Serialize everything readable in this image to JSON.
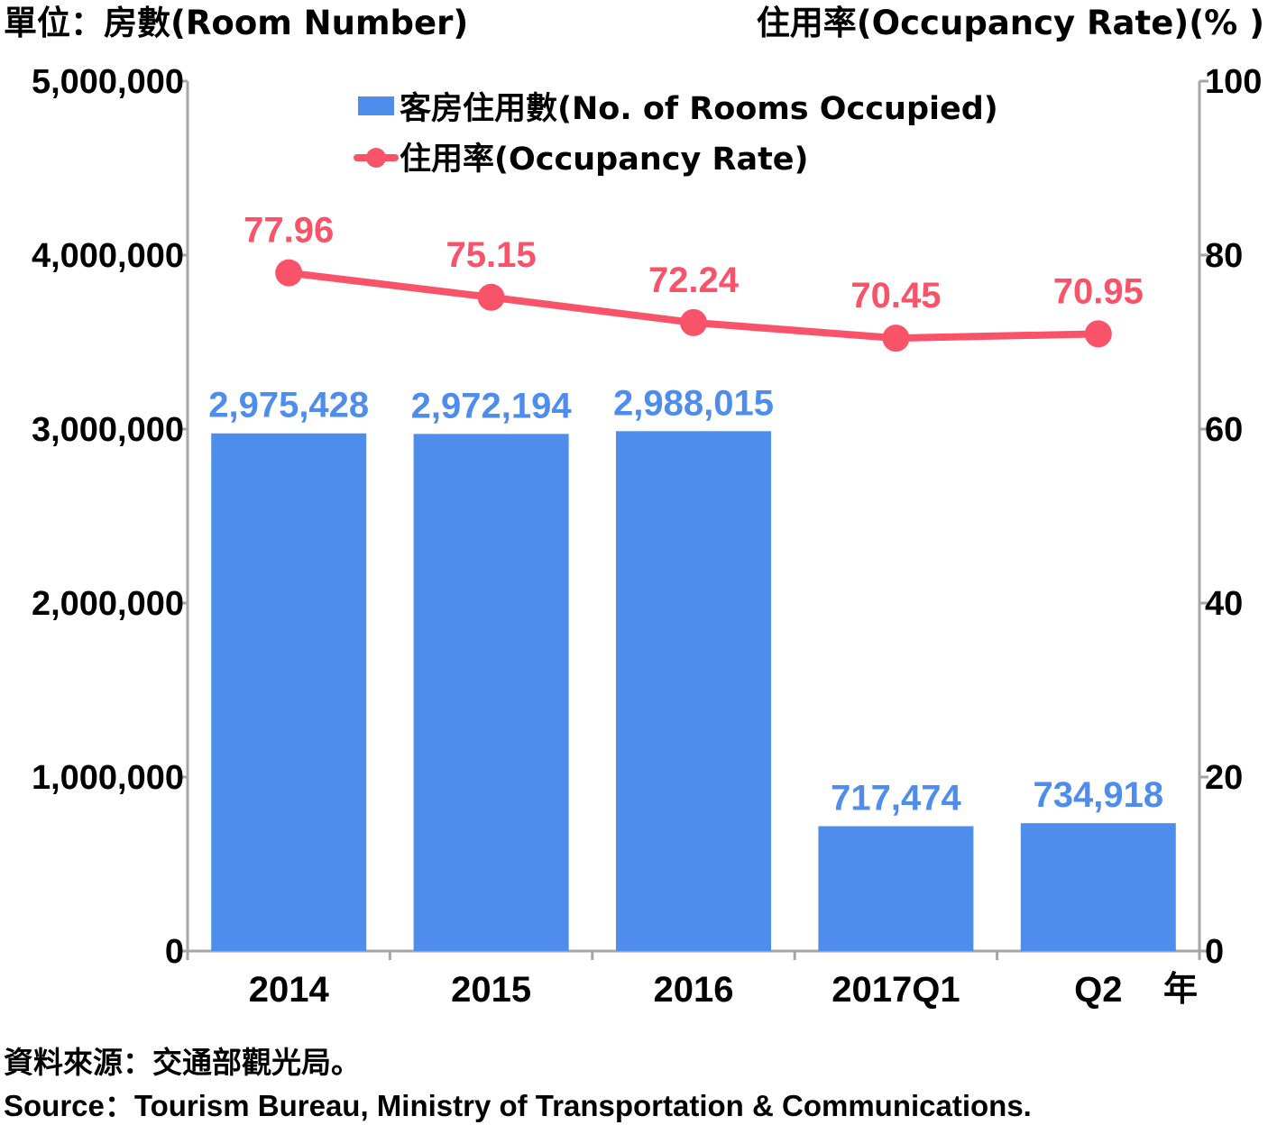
{
  "units": {
    "left": "單位：房數(Room Number)",
    "right": "住用率(Occupancy Rate)(% )"
  },
  "legend": {
    "bar": "客房住用數(No. of Rooms Occupied)",
    "line": "住用率(Occupancy Rate)"
  },
  "colors": {
    "bar": "#4f8ded",
    "bar_label": "#4f8ded",
    "line": "#f9536a",
    "line_label": "#f9536a",
    "axis": "#a6a6a6"
  },
  "chart_data": {
    "type": "bar",
    "categories": [
      "2014",
      "2015",
      "2016",
      "2017Q1",
      "Q2"
    ],
    "x_unit_label": "年",
    "series": [
      {
        "name": "客房住用數(No. of Rooms Occupied)",
        "type": "bar",
        "axis": "left",
        "values": [
          2975428,
          2972194,
          2988015,
          717474,
          734918
        ],
        "labels": [
          "2,975,428",
          "2,972,194",
          "2,988,015",
          "717,474",
          "734,918"
        ]
      },
      {
        "name": "住用率(Occupancy Rate)",
        "type": "line",
        "axis": "right",
        "values": [
          77.96,
          75.15,
          72.24,
          70.45,
          70.95
        ],
        "labels": [
          "77.96",
          "75.15",
          "72.24",
          "70.45",
          "70.95"
        ]
      }
    ],
    "y_left": {
      "lim": [
        0,
        5000000
      ],
      "ticks": [
        0,
        1000000,
        2000000,
        3000000,
        4000000,
        5000000
      ],
      "tick_labels": [
        "0",
        "1,000,000",
        "2,000,000",
        "3,000,000",
        "4,000,000",
        "5,000,000"
      ]
    },
    "y_right": {
      "lim": [
        0,
        100
      ],
      "ticks": [
        0,
        20,
        40,
        60,
        80,
        100
      ],
      "tick_labels": [
        "0",
        "20",
        "40",
        "60",
        "80",
        "100"
      ]
    },
    "grid": false,
    "legend_position": "top-center"
  },
  "source": {
    "zh": "資料來源：交通部觀光局。",
    "en": "Source：Tourism Bureau, Ministry of Transportation & Communications."
  }
}
